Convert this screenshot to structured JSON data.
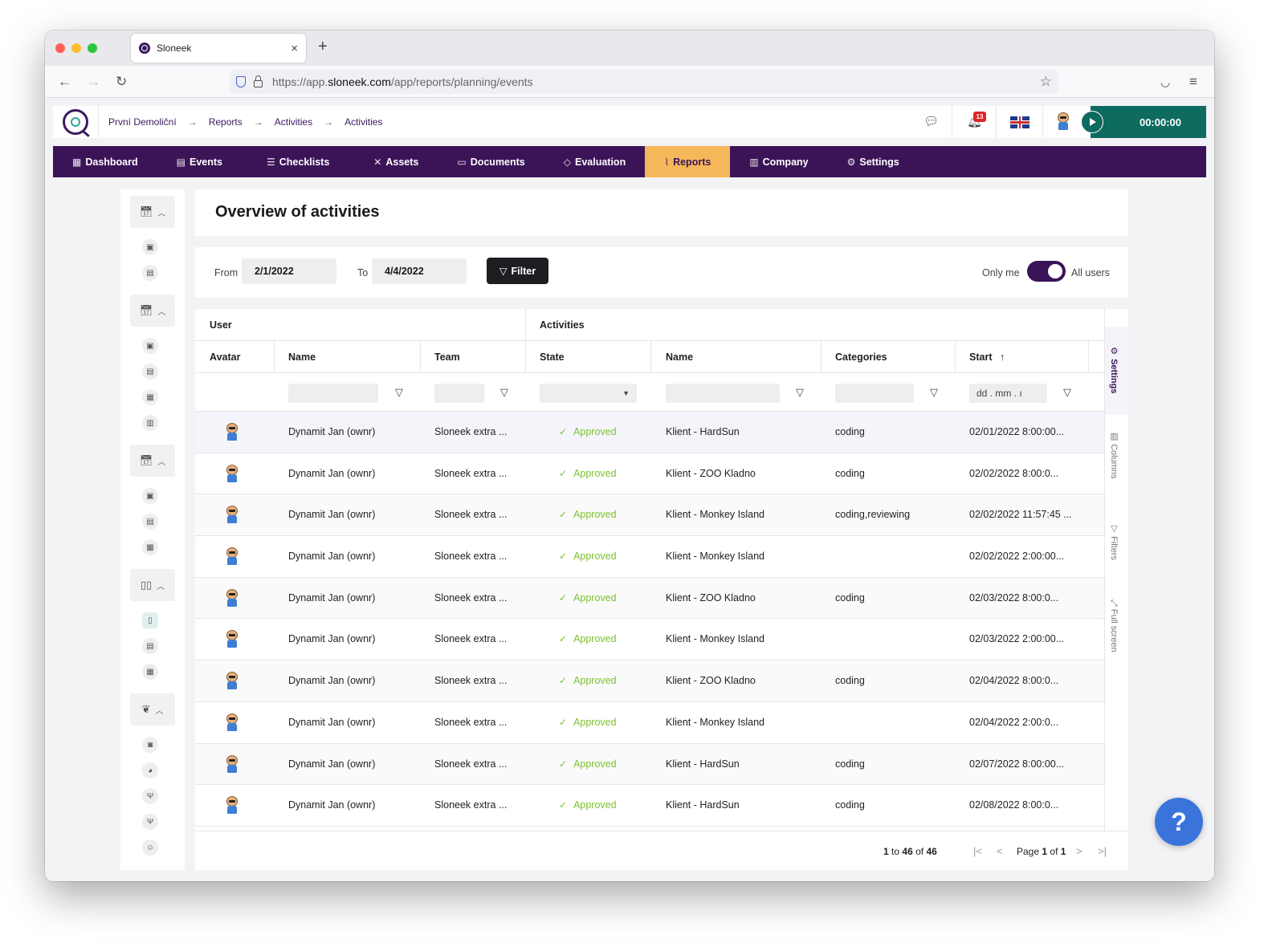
{
  "browser": {
    "tab_title": "Sloneek",
    "tab_close": "×",
    "new_tab": "+",
    "url_prefix": "https://app.",
    "url_domain": "sloneek.com",
    "url_path": "/app/reports/planning/events"
  },
  "header": {
    "breadcrumbs": [
      "První Demoliční",
      "Reports",
      "Activities",
      "Activities"
    ],
    "breadcrumb_separator": "→",
    "notification_count": "13",
    "timer": "00:00:00"
  },
  "nav": [
    {
      "label": "Dashboard",
      "icon": "▦"
    },
    {
      "label": "Events",
      "icon": "▤"
    },
    {
      "label": "Checklists",
      "icon": "☰"
    },
    {
      "label": "Assets",
      "icon": "✕"
    },
    {
      "label": "Documents",
      "icon": "▭"
    },
    {
      "label": "Evaluation",
      "icon": "◇"
    },
    {
      "label": "Reports",
      "icon": "⌇",
      "active": true
    },
    {
      "label": "Company",
      "icon": "▥"
    },
    {
      "label": "Settings",
      "icon": "⚙"
    }
  ],
  "page": {
    "title": "Overview of activities"
  },
  "filters": {
    "from_label": "From",
    "from_value": "2/1/2022",
    "to_label": "To",
    "to_value": "4/4/2022",
    "filter_button": "Filter",
    "only_me_label": "Only me",
    "all_users_label": "All users"
  },
  "grid": {
    "group_user": "User",
    "group_activities": "Activities",
    "columns": [
      "Avatar",
      "Name",
      "Team",
      "State",
      "Name",
      "Categories",
      "Start"
    ],
    "sort_indicator": "↑",
    "date_filter_placeholder": "dd . mm . ı",
    "rows": [
      {
        "name": "Dynamit Jan (ownr)",
        "team": "Sloneek extra ...",
        "state": "Approved",
        "activity": "Klient - HardSun",
        "categories": "coding",
        "start": "02/01/2022 8:00:00..."
      },
      {
        "name": "Dynamit Jan (ownr)",
        "team": "Sloneek extra ...",
        "state": "Approved",
        "activity": "Klient - ZOO Kladno",
        "categories": "coding",
        "start": "02/02/2022 8:00:0..."
      },
      {
        "name": "Dynamit Jan (ownr)",
        "team": "Sloneek extra ...",
        "state": "Approved",
        "activity": "Klient - Monkey Island",
        "categories": "coding,reviewing",
        "start": "02/02/2022 11:57:45 ..."
      },
      {
        "name": "Dynamit Jan (ownr)",
        "team": "Sloneek extra ...",
        "state": "Approved",
        "activity": "Klient - Monkey Island",
        "categories": "",
        "start": "02/02/2022 2:00:00..."
      },
      {
        "name": "Dynamit Jan (ownr)",
        "team": "Sloneek extra ...",
        "state": "Approved",
        "activity": "Klient - ZOO Kladno",
        "categories": "coding",
        "start": "02/03/2022 8:00:0..."
      },
      {
        "name": "Dynamit Jan (ownr)",
        "team": "Sloneek extra ...",
        "state": "Approved",
        "activity": "Klient - Monkey Island",
        "categories": "",
        "start": "02/03/2022 2:00:00..."
      },
      {
        "name": "Dynamit Jan (ownr)",
        "team": "Sloneek extra ...",
        "state": "Approved",
        "activity": "Klient - ZOO Kladno",
        "categories": "coding",
        "start": "02/04/2022 8:00:0..."
      },
      {
        "name": "Dynamit Jan (ownr)",
        "team": "Sloneek extra ...",
        "state": "Approved",
        "activity": "Klient - Monkey Island",
        "categories": "",
        "start": "02/04/2022 2:00:0..."
      },
      {
        "name": "Dynamit Jan (ownr)",
        "team": "Sloneek extra ...",
        "state": "Approved",
        "activity": "Klient - HardSun",
        "categories": "coding",
        "start": "02/07/2022 8:00:00..."
      },
      {
        "name": "Dynamit Jan (ownr)",
        "team": "Sloneek extra ...",
        "state": "Approved",
        "activity": "Klient - HardSun",
        "categories": "coding",
        "start": "02/08/2022 8:00:0..."
      }
    ],
    "side_tabs": [
      "Settings",
      "Columns",
      "Filters",
      "Full screen"
    ]
  },
  "pager": {
    "range_from": "1",
    "to_word": "to",
    "range_to": "46",
    "of_word": "of",
    "total": "46",
    "page_word": "Page",
    "current": "1",
    "page_of_word": "of",
    "page_total": "1"
  },
  "help": {
    "label": "?"
  },
  "colors": {
    "nav_bg": "#3b1458",
    "nav_active": "#f5b75a",
    "timer_bg": "#0e6b60",
    "approved": "#7bc32c",
    "help_bg": "#3a74db"
  }
}
